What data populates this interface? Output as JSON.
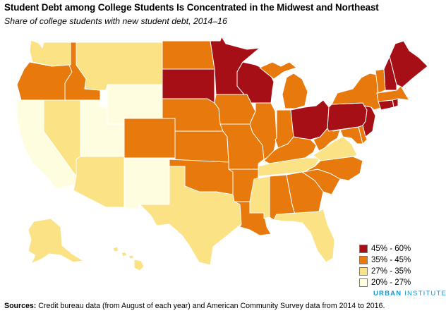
{
  "header": {
    "title": "Student Debt among College Students Is Concentrated in the Midwest and Northeast",
    "subtitle": "Share of college students with new student debt, 2014–16"
  },
  "legend": {
    "items": [
      {
        "label": "45% - 60%",
        "color": "#a50f15"
      },
      {
        "label": "35% - 45%",
        "color": "#e8790c"
      },
      {
        "label": "27% - 35%",
        "color": "#fbe285"
      },
      {
        "label": "20% - 27%",
        "color": "#fffde0"
      }
    ]
  },
  "map_data": {
    "type": "choropleth",
    "classes": {
      "c1": "#a50f15",
      "c2": "#e8790c",
      "c3": "#fbe285",
      "c4": "#fffde0"
    },
    "states": {
      "WA": "c3",
      "OR": "c2",
      "CA": "c4",
      "NV": "c3",
      "ID": "c2",
      "MT": "c3",
      "WY": "c4",
      "UT": "c4",
      "AZ": "c3",
      "CO": "c2",
      "NM": "c4",
      "ND": "c2",
      "SD": "c1",
      "NE": "c2",
      "KS": "c2",
      "OK": "c2",
      "TX": "c3",
      "MN": "c1",
      "IA": "c2",
      "MO": "c2",
      "AR": "c2",
      "LA": "c2",
      "WI": "c1",
      "IL": "c2",
      "MI": "c2",
      "IN": "c2",
      "OH": "c1",
      "KY": "c2",
      "TN": "c3",
      "MS": "c3",
      "AL": "c2",
      "GA": "c2",
      "FL": "c3",
      "SC": "c2",
      "NC": "c2",
      "VA": "c3",
      "WV": "c2",
      "MD": "c2",
      "DE": "c2",
      "PA": "c1",
      "NJ": "c1",
      "NY": "c2",
      "CT": "c1",
      "RI": "c1",
      "MA": "c2",
      "VT": "c2",
      "NH": "c1",
      "ME": "c1",
      "AK": "c3",
      "HI": "c3"
    }
  },
  "brand": {
    "part1": "URBAN",
    "part2": " INSTITUTE"
  },
  "footer": {
    "sources_label": "Sources:",
    "sources_text": " Credit bureau data (from August of each year) and American Community Survey data from 2014 to 2016."
  }
}
